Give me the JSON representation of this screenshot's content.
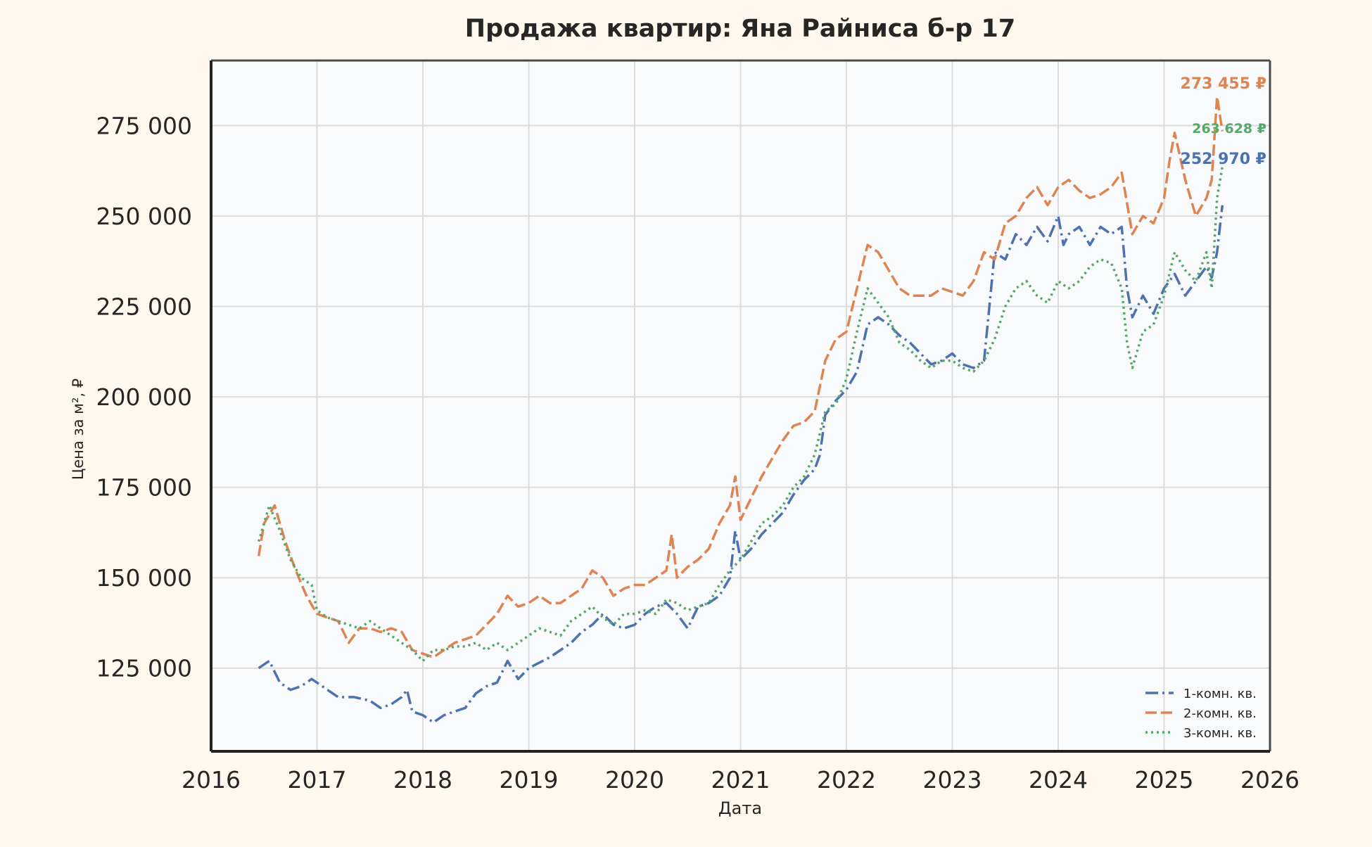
{
  "chart_data": {
    "type": "line",
    "title": "Продажа квартир: Яна Райниса б-р 17",
    "xlabel": "Дата",
    "ylabel": "Цена за м², ₽",
    "xlim": [
      2016.0,
      2026.0
    ],
    "ylim": [
      102000,
      293000
    ],
    "x_ticks": [
      2016,
      2017,
      2018,
      2019,
      2020,
      2021,
      2022,
      2023,
      2024,
      2025,
      2026
    ],
    "x_tick_labels": [
      "2016",
      "2017",
      "2018",
      "2019",
      "2020",
      "2021",
      "2022",
      "2023",
      "2024",
      "2025",
      "2026"
    ],
    "y_ticks": [
      125000,
      150000,
      175000,
      200000,
      225000,
      250000,
      275000
    ],
    "y_tick_labels": [
      "125 000",
      "150 000",
      "175 000",
      "200 000",
      "225 000",
      "250 000",
      "275 000"
    ],
    "grid": true,
    "legend_position": "bottom-right",
    "series": [
      {
        "name": "1-комн. кв.",
        "color": "#4c72b0",
        "dash": "dash-dot",
        "x": [
          2016.45,
          2016.55,
          2016.65,
          2016.75,
          2016.85,
          2016.95,
          2017.05,
          2017.2,
          2017.35,
          2017.5,
          2017.6,
          2017.7,
          2017.8,
          2017.85,
          2017.9,
          2018.0,
          2018.1,
          2018.2,
          2018.3,
          2018.4,
          2018.5,
          2018.6,
          2018.7,
          2018.8,
          2018.9,
          2019.0,
          2019.2,
          2019.4,
          2019.5,
          2019.6,
          2019.7,
          2019.8,
          2019.9,
          2020.0,
          2020.1,
          2020.2,
          2020.3,
          2020.4,
          2020.5,
          2020.6,
          2020.7,
          2020.8,
          2020.9,
          2020.95,
          2021.0,
          2021.1,
          2021.2,
          2021.3,
          2021.4,
          2021.5,
          2021.6,
          2021.7,
          2021.75,
          2021.8,
          2021.9,
          2022.0,
          2022.1,
          2022.2,
          2022.3,
          2022.4,
          2022.5,
          2022.6,
          2022.7,
          2022.8,
          2022.9,
          2023.0,
          2023.1,
          2023.2,
          2023.3,
          2023.35,
          2023.4,
          2023.5,
          2023.6,
          2023.7,
          2023.8,
          2023.9,
          2024.0,
          2024.05,
          2024.1,
          2024.2,
          2024.3,
          2024.4,
          2024.5,
          2024.6,
          2024.65,
          2024.7,
          2024.8,
          2024.9,
          2025.0,
          2025.1,
          2025.2,
          2025.3,
          2025.4,
          2025.45,
          2025.5,
          2025.55
        ],
        "y": [
          125000,
          127000,
          121000,
          119000,
          120000,
          122000,
          120000,
          117000,
          117000,
          116000,
          114000,
          115000,
          117000,
          119000,
          113000,
          112000,
          110000,
          112000,
          113000,
          114000,
          118000,
          120000,
          121000,
          127000,
          122000,
          125000,
          128000,
          132000,
          135000,
          137000,
          140000,
          137000,
          136000,
          137000,
          140000,
          142000,
          143000,
          140000,
          136000,
          142000,
          143000,
          145000,
          150000,
          163000,
          155000,
          158000,
          162000,
          165000,
          168000,
          173000,
          177000,
          180000,
          184000,
          195000,
          199000,
          202000,
          207000,
          220000,
          222000,
          220000,
          217000,
          215000,
          212000,
          209000,
          210000,
          212000,
          209000,
          208000,
          210000,
          225000,
          240000,
          238000,
          245000,
          242000,
          247000,
          243000,
          250000,
          242000,
          245000,
          247000,
          242000,
          247000,
          245000,
          247000,
          230000,
          222000,
          228000,
          223000,
          230000,
          234000,
          228000,
          232000,
          236000,
          233000,
          240000,
          252970
        ]
      },
      {
        "name": "2-комн. кв.",
        "color": "#dd8452",
        "dash": "dash",
        "x": [
          2016.45,
          2016.5,
          2016.6,
          2016.7,
          2016.8,
          2016.9,
          2017.0,
          2017.1,
          2017.2,
          2017.3,
          2017.4,
          2017.5,
          2017.6,
          2017.7,
          2017.8,
          2017.9,
          2018.0,
          2018.1,
          2018.2,
          2018.3,
          2018.4,
          2018.5,
          2018.6,
          2018.7,
          2018.8,
          2018.9,
          2019.0,
          2019.1,
          2019.2,
          2019.3,
          2019.4,
          2019.5,
          2019.6,
          2019.7,
          2019.8,
          2019.9,
          2020.0,
          2020.1,
          2020.2,
          2020.3,
          2020.35,
          2020.4,
          2020.5,
          2020.6,
          2020.7,
          2020.8,
          2020.9,
          2020.95,
          2021.0,
          2021.1,
          2021.2,
          2021.3,
          2021.4,
          2021.5,
          2021.6,
          2021.7,
          2021.8,
          2021.9,
          2022.0,
          2022.1,
          2022.2,
          2022.3,
          2022.4,
          2022.5,
          2022.6,
          2022.7,
          2022.8,
          2022.9,
          2023.0,
          2023.1,
          2023.2,
          2023.3,
          2023.4,
          2023.5,
          2023.6,
          2023.7,
          2023.8,
          2023.9,
          2024.0,
          2024.1,
          2024.2,
          2024.3,
          2024.4,
          2024.5,
          2024.6,
          2024.7,
          2024.8,
          2024.9,
          2025.0,
          2025.05,
          2025.1,
          2025.2,
          2025.3,
          2025.4,
          2025.45,
          2025.5,
          2025.55
        ],
        "y": [
          156000,
          165000,
          170000,
          160000,
          152000,
          145000,
          140000,
          139000,
          138000,
          132000,
          136000,
          136000,
          135000,
          136000,
          135000,
          130000,
          129000,
          128000,
          130000,
          132000,
          133000,
          134000,
          137000,
          140000,
          145000,
          142000,
          143000,
          145000,
          143000,
          143000,
          145000,
          147000,
          152000,
          150000,
          145000,
          147000,
          148000,
          148000,
          150000,
          152000,
          162000,
          150000,
          153000,
          155000,
          158000,
          165000,
          170000,
          178000,
          166000,
          172000,
          178000,
          183000,
          188000,
          192000,
          193000,
          196000,
          210000,
          216000,
          218000,
          230000,
          242000,
          240000,
          235000,
          230000,
          228000,
          228000,
          228000,
          230000,
          229000,
          228000,
          232000,
          240000,
          238000,
          248000,
          250000,
          255000,
          258000,
          253000,
          258000,
          260000,
          257000,
          255000,
          256000,
          258000,
          262000,
          245000,
          250000,
          248000,
          255000,
          265000,
          273000,
          260000,
          250000,
          255000,
          260000,
          283000,
          273455
        ]
      },
      {
        "name": "3-комн. кв.",
        "color": "#55a868",
        "dash": "dot",
        "x": [
          2016.45,
          2016.55,
          2016.65,
          2016.75,
          2016.85,
          2016.95,
          2017.0,
          2017.1,
          2017.2,
          2017.3,
          2017.4,
          2017.5,
          2017.6,
          2017.7,
          2017.8,
          2017.9,
          2018.0,
          2018.1,
          2018.2,
          2018.3,
          2018.4,
          2018.5,
          2018.6,
          2018.7,
          2018.8,
          2018.9,
          2019.0,
          2019.1,
          2019.2,
          2019.3,
          2019.4,
          2019.5,
          2019.6,
          2019.7,
          2019.8,
          2019.9,
          2020.0,
          2020.1,
          2020.2,
          2020.3,
          2020.4,
          2020.5,
          2020.6,
          2020.7,
          2020.8,
          2020.9,
          2021.0,
          2021.1,
          2021.2,
          2021.3,
          2021.4,
          2021.5,
          2021.6,
          2021.7,
          2021.8,
          2021.9,
          2022.0,
          2022.1,
          2022.2,
          2022.3,
          2022.4,
          2022.5,
          2022.6,
          2022.7,
          2022.8,
          2022.9,
          2023.0,
          2023.1,
          2023.2,
          2023.3,
          2023.4,
          2023.5,
          2023.6,
          2023.7,
          2023.8,
          2023.9,
          2024.0,
          2024.1,
          2024.2,
          2024.3,
          2024.4,
          2024.5,
          2024.6,
          2024.65,
          2024.7,
          2024.8,
          2024.9,
          2025.0,
          2025.1,
          2025.2,
          2025.3,
          2025.4,
          2025.45,
          2025.5,
          2025.55
        ],
        "y": [
          160000,
          170000,
          163000,
          155000,
          150000,
          148000,
          141000,
          139000,
          138000,
          137000,
          136000,
          138000,
          136000,
          134000,
          132000,
          130000,
          127000,
          130000,
          130000,
          131000,
          131000,
          132000,
          130000,
          132000,
          130000,
          132000,
          134000,
          136000,
          135000,
          134000,
          138000,
          140000,
          142000,
          139000,
          137000,
          140000,
          140000,
          141000,
          140000,
          144000,
          143000,
          141000,
          142000,
          143000,
          148000,
          152000,
          155000,
          160000,
          165000,
          167000,
          170000,
          175000,
          178000,
          184000,
          196000,
          198000,
          205000,
          218000,
          230000,
          226000,
          222000,
          215000,
          213000,
          210000,
          208000,
          210000,
          210000,
          208000,
          207000,
          210000,
          216000,
          225000,
          230000,
          232000,
          228000,
          226000,
          232000,
          230000,
          232000,
          236000,
          238000,
          237000,
          230000,
          215000,
          208000,
          218000,
          220000,
          228000,
          240000,
          235000,
          232000,
          240000,
          230000,
          255000,
          263628
        ]
      }
    ],
    "annotations": [
      {
        "text": "273 455 ₽",
        "series": "2-комн. кв.",
        "color": "#dd8452"
      },
      {
        "text": "263 628 ₽",
        "series": "3-комн. кв.",
        "color": "#55a868"
      },
      {
        "text": "252 970 ₽",
        "series": "1-комн. кв.",
        "color": "#4c72b0"
      }
    ]
  }
}
